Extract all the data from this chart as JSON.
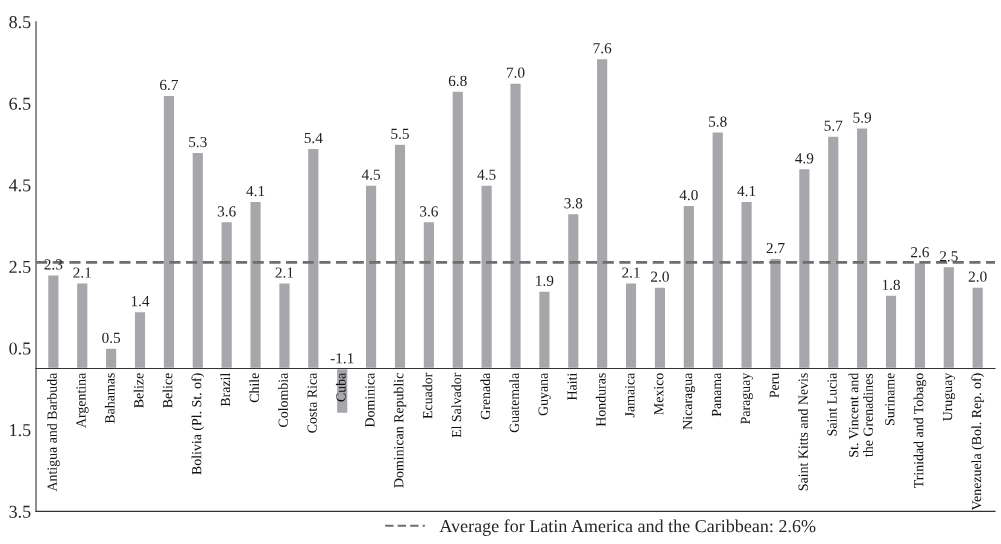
{
  "chart_data": {
    "type": "bar",
    "categories": [
      "Antigua and Barbuda",
      "Argentina",
      "Bahamas",
      "Belize",
      "Belice",
      "Bolivia (Pl. St. of)",
      "Brazil",
      "Chile",
      "Colombia",
      "Costa Rica",
      "Cuba",
      "Dominica",
      "Dominican Republic",
      "Ecuador",
      "El Salvador",
      "Grenada",
      "Guatemala",
      "Guyana",
      "Haiti",
      "Honduras",
      "Jamaica",
      "Mexico",
      "Nicaragua",
      "Panama",
      "Paraguay",
      "Peru",
      "Saint Kitts and Nevis",
      "Saint Lucia",
      "St. Vincent and\nthe Grenadines",
      "Suriname",
      "Trinidad and Tobago",
      "Uruguay",
      "Venezuela (Bol. Rep. of)"
    ],
    "values": [
      2.3,
      2.1,
      0.5,
      1.4,
      6.7,
      5.3,
      3.6,
      4.1,
      2.1,
      5.4,
      -1.1,
      4.5,
      5.5,
      3.6,
      6.8,
      4.5,
      7.0,
      1.9,
      3.8,
      7.6,
      2.1,
      2.0,
      4.0,
      5.8,
      4.1,
      2.7,
      4.9,
      5.7,
      5.9,
      1.8,
      2.6,
      2.5,
      2.0
    ],
    "color": "#a6a7ab",
    "value_labels": [
      "2.3",
      "2.1",
      "0.5",
      "1.4",
      "6.7",
      "5.3",
      "3.6",
      "4.1",
      "2.1",
      "5.4",
      "-1.1",
      "4.5",
      "5.5",
      "3.6",
      "6.8",
      "4.5",
      "7.0",
      "1.9",
      "3.8",
      "7.6",
      "2.1",
      "2.0",
      "4.0",
      "5.8",
      "4.1",
      "2.7",
      "4.9",
      "5.7",
      "5.9",
      "1.8",
      "2.6",
      "2.5",
      "2.0"
    ],
    "ylim": [
      -3.5,
      8.5
    ],
    "yticks": [
      {
        "value": -3.5,
        "label": "3.5"
      },
      {
        "value": -1.5,
        "label": "1.5"
      },
      0.5,
      2.5,
      4.5,
      6.5,
      8.5
    ],
    "ref_lines": [
      {
        "axis": "y",
        "value": 2.6,
        "label": "Average for Latin America and the Caribbean: 2.6%",
        "color": "#6e6e6e",
        "line_style": "dashed"
      }
    ],
    "grid": false,
    "legend": "bottom"
  }
}
